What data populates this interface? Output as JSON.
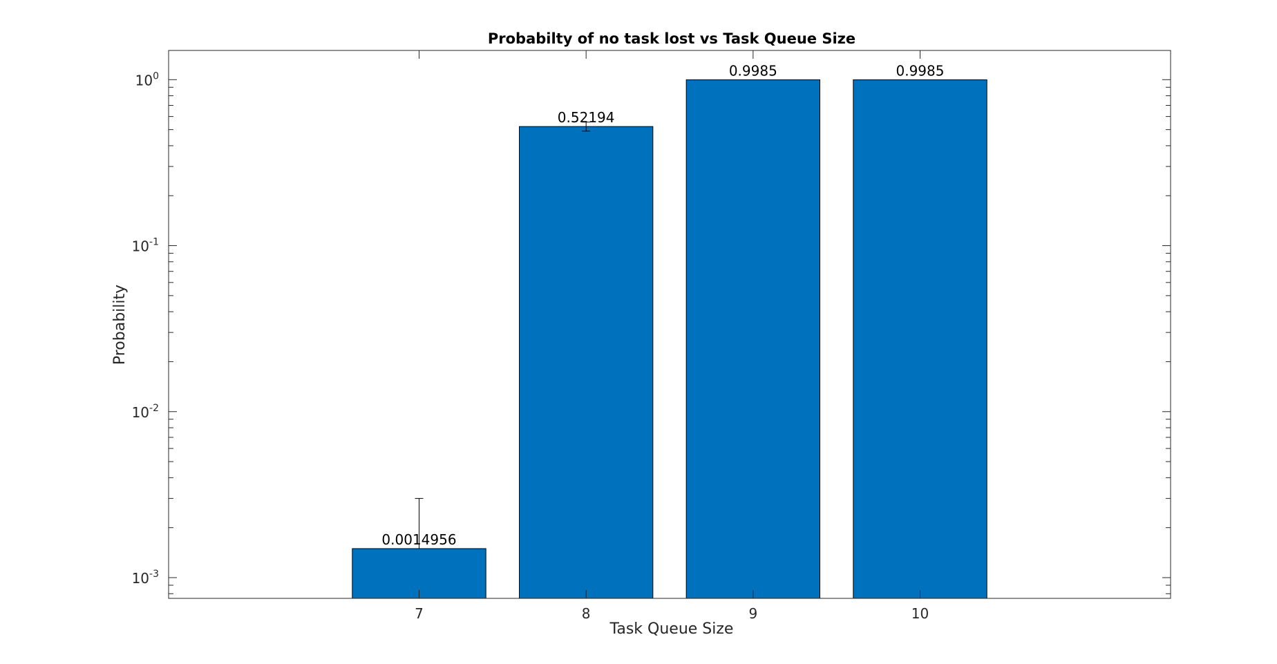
{
  "chart_data": {
    "type": "bar",
    "title": "Probabilty of no task lost vs Task Queue Size",
    "xlabel": "Task Queue Size",
    "ylabel": "Probability",
    "yscale": "log",
    "categories": [
      "7",
      "8",
      "9",
      "10"
    ],
    "x": [
      7,
      8,
      9,
      10
    ],
    "xlim": [
      5.5,
      11.5
    ],
    "ylim": [
      0.00075,
      1.5
    ],
    "yticks": [
      {
        "value": 0.001,
        "base": "10",
        "exp": "-3"
      },
      {
        "value": 0.01,
        "base": "10",
        "exp": "-2"
      },
      {
        "value": 0.1,
        "base": "10",
        "exp": "-1"
      },
      {
        "value": 1,
        "base": "10",
        "exp": "0"
      }
    ],
    "values": [
      0.0014956,
      0.52194,
      0.9985,
      0.9985
    ],
    "data_labels": [
      "0.0014956",
      "0.52194",
      "0.9985",
      "0.9985"
    ],
    "error_bars": [
      {
        "lower": 0.0014956,
        "upper": 0.003
      },
      {
        "lower": 0.49,
        "upper": 0.555
      },
      null,
      null
    ],
    "bar_color": "#0072BD",
    "grid": false,
    "legend": false
  }
}
